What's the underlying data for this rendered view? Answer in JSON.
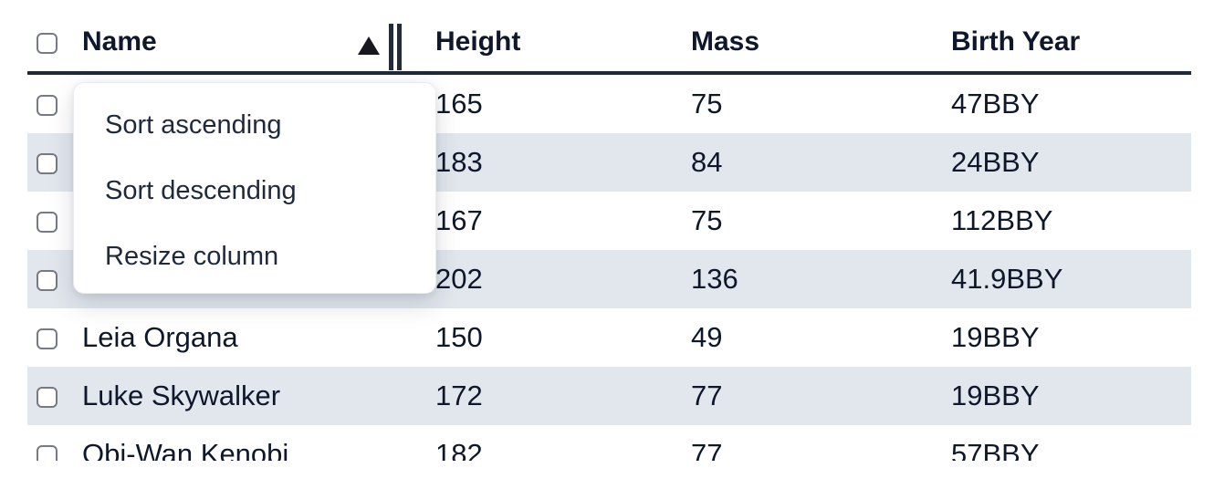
{
  "table": {
    "header": {
      "name": "Name",
      "height": "Height",
      "mass": "Mass",
      "birth_year": "Birth Year"
    },
    "sort": {
      "column": "Name",
      "direction": "ascending"
    },
    "rows": [
      {
        "name": "",
        "height": "165",
        "mass": "75",
        "birth_year": "47BBY"
      },
      {
        "name": "",
        "height": "183",
        "mass": "84",
        "birth_year": "24BBY"
      },
      {
        "name": "",
        "height": "167",
        "mass": "75",
        "birth_year": "112BBY"
      },
      {
        "name": "",
        "height": "202",
        "mass": "136",
        "birth_year": "41.9BBY"
      },
      {
        "name": "Leia Organa",
        "height": "150",
        "mass": "49",
        "birth_year": "19BBY"
      },
      {
        "name": "Luke Skywalker",
        "height": "172",
        "mass": "77",
        "birth_year": "19BBY"
      },
      {
        "name": "Obi-Wan Kenobi",
        "height": "182",
        "mass": "77",
        "birth_year": "57BBY"
      }
    ],
    "checkboxes_checked": false
  },
  "context_menu": {
    "items": [
      {
        "label": "Sort ascending"
      },
      {
        "label": "Sort descending"
      },
      {
        "label": "Resize column"
      }
    ]
  },
  "colors": {
    "header_border": "#1e293b",
    "row_stripe": "#e2e7ee",
    "text": "#0f172a",
    "menu_text": "#1e293b",
    "checkbox_border": "#757a85",
    "sort_icon": "#16181d",
    "resize_handle": "#222b3a"
  }
}
